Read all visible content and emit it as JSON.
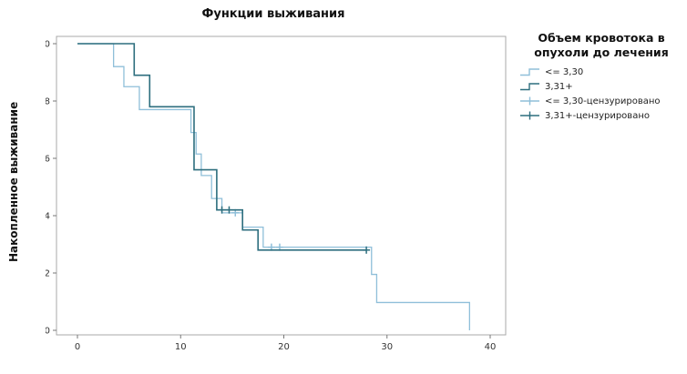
{
  "title": "Функции выживания",
  "y_axis_label": "Накопленное выживание",
  "legend": {
    "title": "Объем кровотока в опухоли до лечения",
    "items": [
      {
        "label": "<= 3,30",
        "type": "step",
        "color": "#8FBFD9"
      },
      {
        "label": "3,31+",
        "type": "step",
        "color": "#2D6E7E"
      },
      {
        "label": "<= 3,30-цензурировано",
        "type": "censor",
        "color": "#8FBFD9"
      },
      {
        "label": "3,31+-цензурировано",
        "type": "censor",
        "color": "#2D6E7E"
      }
    ]
  },
  "chart_data": {
    "type": "line",
    "subtype": "kaplan-meier-step",
    "title": "Функции выживания",
    "xlabel": "",
    "ylabel": "Накопленное выживание",
    "xlim": [
      0,
      40
    ],
    "ylim": [
      0.0,
      1.0
    ],
    "x_ticks": [
      0,
      10,
      20,
      30,
      40
    ],
    "y_tick_values": [
      0.0,
      0.2,
      0.4,
      0.6,
      0.8,
      1.0
    ],
    "y_tick_labels": [
      "0,0",
      "0,2",
      "0,4",
      "0,6",
      "0,8",
      "1,0"
    ],
    "grid": false,
    "legend_position": "right",
    "series": [
      {
        "name": "<= 3,30",
        "color": "#8FBFD9",
        "steps": [
          [
            0,
            1.0
          ],
          [
            3.5,
            0.92
          ],
          [
            4.5,
            0.85
          ],
          [
            6,
            0.77
          ],
          [
            11,
            0.69
          ],
          [
            11.5,
            0.615
          ],
          [
            12,
            0.54
          ],
          [
            13,
            0.46
          ],
          [
            14,
            0.41
          ],
          [
            16,
            0.36
          ],
          [
            18,
            0.29
          ],
          [
            28.5,
            0.195
          ],
          [
            29,
            0.097
          ],
          [
            38,
            0.0
          ]
        ],
        "end_x": 38,
        "censored": [
          [
            15.3,
            0.41
          ],
          [
            18.8,
            0.29
          ],
          [
            19.6,
            0.29
          ]
        ]
      },
      {
        "name": "3,31+",
        "color": "#2D6E7E",
        "steps": [
          [
            0,
            1.0
          ],
          [
            5.5,
            0.89
          ],
          [
            7,
            0.78
          ],
          [
            11.3,
            0.56
          ],
          [
            13.5,
            0.42
          ],
          [
            16,
            0.35
          ],
          [
            17.5,
            0.28
          ]
        ],
        "end_x": 28,
        "censored": [
          [
            14,
            0.42
          ],
          [
            14.7,
            0.42
          ],
          [
            28,
            0.28
          ]
        ]
      }
    ]
  }
}
